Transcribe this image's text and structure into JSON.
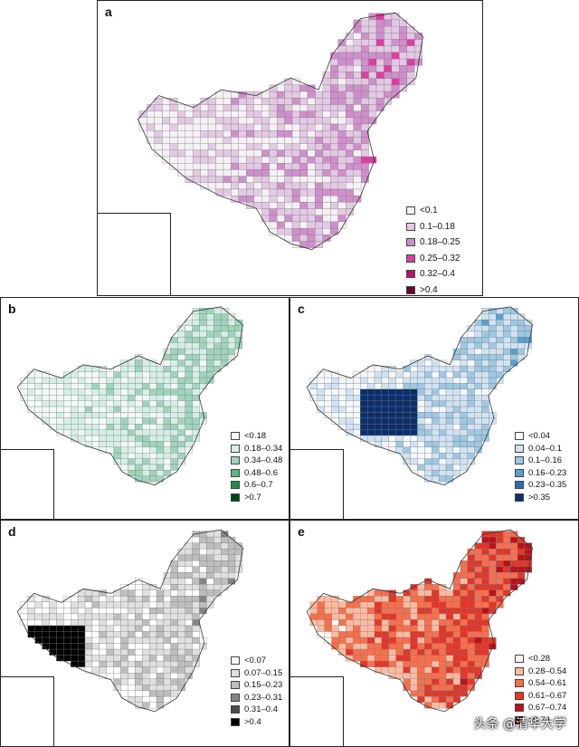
{
  "panels": [
    {
      "id": "a",
      "letter": "a",
      "legend": [
        {
          "label": "<0.1",
          "color": "#f6f1f6"
        },
        {
          "label": "0.1–0.18",
          "color": "#e3c9e3"
        },
        {
          "label": "0.18–0.25",
          "color": "#cf8fcb"
        },
        {
          "label": "0.25–0.32",
          "color": "#df3da2"
        },
        {
          "label": "0.32–0.4",
          "color": "#b8156a"
        },
        {
          "label": ">0.4",
          "color": "#6b0031"
        }
      ]
    },
    {
      "id": "b",
      "letter": "b",
      "legend": [
        {
          "label": "<0.18",
          "color": "#f2faf7"
        },
        {
          "label": "0.18–0.34",
          "color": "#d6efe6"
        },
        {
          "label": "0.34–0.48",
          "color": "#9fd4bc"
        },
        {
          "label": "0.48–0.6",
          "color": "#5ab682"
        },
        {
          "label": "0.6–0.7",
          "color": "#258a48"
        },
        {
          "label": ">0.7",
          "color": "#00461d"
        }
      ]
    },
    {
      "id": "c",
      "letter": "c",
      "legend": [
        {
          "label": "<0.04",
          "color": "#f5f9fd"
        },
        {
          "label": "0.04–0.1",
          "color": "#d1e3f3"
        },
        {
          "label": "0.1–0.16",
          "color": "#9ec8e2"
        },
        {
          "label": "0.16–0.23",
          "color": "#5a9fce"
        },
        {
          "label": "0.23–0.35",
          "color": "#2a6eb4"
        },
        {
          "label": ">0.35",
          "color": "#0b2f6b"
        }
      ]
    },
    {
      "id": "d",
      "letter": "d",
      "legend": [
        {
          "label": "<0.07",
          "color": "#ffffff"
        },
        {
          "label": "0.07–0.15",
          "color": "#e0e0e0"
        },
        {
          "label": "0.15–0.23",
          "color": "#bdbdbd"
        },
        {
          "label": "0.23–0.31",
          "color": "#858585"
        },
        {
          "label": "0.31–0.4",
          "color": "#4d4d4d"
        },
        {
          "label": ">0.4",
          "color": "#000000"
        }
      ]
    },
    {
      "id": "e",
      "letter": "e",
      "legend": [
        {
          "label": "<0.28",
          "color": "#fff5f0"
        },
        {
          "label": "0.28–0.54",
          "color": "#fcbba1"
        },
        {
          "label": "0.54–0.61",
          "color": "#f66f4f"
        },
        {
          "label": "0.61–0.67",
          "color": "#e0372a"
        },
        {
          "label": "0.67–0.74",
          "color": "#b8121b"
        },
        {
          "label": ">0.74",
          "color": "#6a000d"
        }
      ]
    }
  ],
  "watermark": "头条 @清华大学"
}
